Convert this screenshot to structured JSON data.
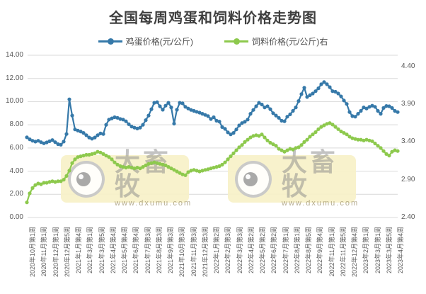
{
  "title": "全国每周鸡蛋和饲料价格走势图",
  "legend": [
    {
      "label": "鸡蛋价格(元/公斤)",
      "color": "#3679a9"
    },
    {
      "label": "饲料价格(元/公斤)右",
      "color": "#8dc94d"
    }
  ],
  "watermark": {
    "brand": "大畜牧",
    "url": "www.dxumu.com"
  },
  "colors": {
    "egg_line": "#3679a9",
    "feed_line": "#8dc94d",
    "gridline": "#d9d9d9",
    "axis_text": "#595959"
  },
  "chart_data": {
    "type": "line",
    "title": "全国每周鸡蛋和饲料价格走势图",
    "grid": true,
    "legend_position": "top",
    "x_tick_labels": [
      "2020年10月第1周",
      "2020年11月第1周",
      "2020年12月第1周",
      "2020年12月第5周",
      "2021年1月第4周",
      "2021年3月第1周",
      "2021年3月第5周",
      "2021年4月第4周",
      "2021年5月第4周",
      "2021年6月第4周",
      "2021年7月第3周",
      "2021年8月第3周",
      "2021年9月第3周",
      "2021年10月第3周",
      "2021年11月第3周",
      "2021年12月第3周",
      "2022年1月第2周",
      "2022年2月第3周",
      "2022年3月第3周",
      "2022年4月第2周",
      "2022年5月第2周",
      "2022年6月第2周",
      "2022年7月第1周",
      "2022年8月第1周",
      "2022年8月第5周",
      "2022年9月第4周",
      "2022年11月第1周",
      "2022年11月第5周",
      "2022年12月第4周",
      "2023年2月第1周",
      "2023年3月第1周",
      "2023年3月第5周",
      "2023年4月第4周"
    ],
    "left_axis": {
      "min": 0,
      "max": 14,
      "ticks": [
        "0.00",
        "2.00",
        "4.00",
        "6.00",
        "8.00",
        "10.00",
        "12.00",
        "14.00"
      ]
    },
    "right_axis": {
      "min": 2.4,
      "max": 4.548,
      "tick_interval": 0.5,
      "ticks": [
        "2.40",
        "2.90",
        "3.40",
        "3.90",
        "4.40"
      ]
    },
    "series": [
      {
        "name": "鸡蛋价格(元/公斤)",
        "axis": "left",
        "color": "#3679a9",
        "values": [
          6.92,
          6.75,
          6.62,
          6.55,
          6.62,
          6.5,
          6.4,
          6.48,
          6.58,
          6.68,
          6.5,
          6.33,
          6.28,
          6.55,
          7.2,
          10.2,
          8.8,
          7.6,
          7.5,
          7.42,
          7.3,
          7.1,
          6.9,
          6.8,
          6.9,
          7.1,
          7.25,
          7.2,
          8.0,
          8.45,
          8.55,
          8.65,
          8.6,
          8.5,
          8.45,
          8.3,
          8.05,
          7.85,
          7.75,
          7.68,
          7.75,
          8.0,
          8.4,
          8.8,
          9.35,
          9.9,
          9.95,
          9.6,
          9.3,
          9.65,
          9.9,
          9.5,
          8.1,
          9.3,
          9.9,
          9.85,
          9.55,
          9.4,
          9.28,
          9.2,
          9.12,
          9.05,
          8.95,
          8.85,
          8.75,
          8.5,
          8.65,
          8.35,
          8.28,
          7.8,
          7.65,
          7.35,
          7.17,
          7.3,
          7.6,
          7.95,
          8.15,
          8.26,
          8.45,
          8.95,
          9.28,
          9.6,
          9.9,
          9.75,
          9.5,
          9.6,
          9.35,
          9.0,
          8.8,
          8.6,
          8.35,
          8.3,
          8.7,
          8.9,
          9.2,
          9.5,
          10.05,
          10.65,
          11.2,
          10.4,
          10.55,
          10.7,
          10.9,
          11.15,
          11.5,
          11.68,
          11.5,
          11.25,
          10.9,
          10.85,
          10.7,
          10.45,
          10.1,
          9.8,
          9.1,
          8.75,
          8.7,
          8.95,
          9.2,
          9.5,
          9.4,
          9.55,
          9.65,
          9.55,
          9.2,
          8.95,
          9.45,
          9.62,
          9.6,
          9.45,
          9.2,
          9.1
        ]
      },
      {
        "name": "饲料价格(元/公斤)右",
        "axis": "right",
        "color": "#8dc94d",
        "values": [
          2.6,
          2.72,
          2.79,
          2.83,
          2.85,
          2.84,
          2.86,
          2.86,
          2.87,
          2.88,
          2.87,
          2.88,
          2.88,
          2.9,
          2.95,
          3.02,
          3.12,
          3.17,
          3.2,
          3.21,
          3.22,
          3.23,
          3.23,
          3.24,
          3.25,
          3.27,
          3.26,
          3.24,
          3.22,
          3.2,
          3.17,
          3.13,
          3.1,
          3.08,
          3.07,
          3.06,
          3.07,
          3.06,
          3.05,
          3.06,
          3.05,
          3.07,
          3.09,
          3.11,
          3.12,
          3.13,
          3.12,
          3.11,
          3.1,
          3.09,
          3.07,
          3.05,
          3.03,
          3.01,
          2.99,
          2.97,
          2.96,
          3.0,
          3.02,
          3.03,
          3.02,
          3.01,
          3.02,
          3.03,
          3.04,
          3.05,
          3.06,
          3.07,
          3.08,
          3.1,
          3.13,
          3.17,
          3.21,
          3.25,
          3.29,
          3.33,
          3.36,
          3.4,
          3.43,
          3.46,
          3.48,
          3.49,
          3.48,
          3.5,
          3.46,
          3.42,
          3.39,
          3.37,
          3.35,
          3.31,
          3.29,
          3.27,
          3.29,
          3.31,
          3.3,
          3.32,
          3.33,
          3.36,
          3.4,
          3.43,
          3.47,
          3.5,
          3.53,
          3.57,
          3.6,
          3.62,
          3.64,
          3.65,
          3.63,
          3.6,
          3.57,
          3.54,
          3.52,
          3.5,
          3.47,
          3.45,
          3.44,
          3.43,
          3.43,
          3.42,
          3.43,
          3.42,
          3.41,
          3.38,
          3.35,
          3.32,
          3.28,
          3.24,
          3.22,
          3.27,
          3.29,
          3.28
        ]
      }
    ]
  }
}
